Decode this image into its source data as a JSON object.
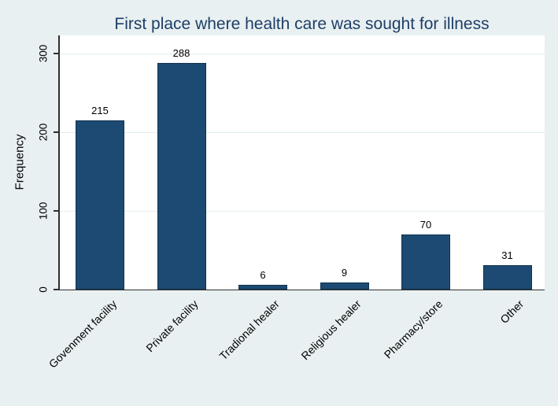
{
  "chart_data": {
    "type": "bar",
    "title": "First place where health care was sought for illness",
    "categories": [
      "Govenment facility",
      "Private facility",
      "Tradional healer",
      "Religious healer",
      "Pharmacy/store",
      "Other"
    ],
    "values": [
      215,
      288,
      6,
      9,
      70,
      31
    ],
    "bar_value_labels": [
      "215",
      "288",
      "6",
      "9",
      "70",
      "31"
    ],
    "xlabel": "",
    "ylabel": "Frequency",
    "yticks": [
      0,
      100,
      200,
      300
    ],
    "ytick_labels": [
      "0",
      "100",
      "200",
      "300"
    ],
    "ylim": [
      0,
      323
    ],
    "grid": true,
    "legend": false,
    "colors": {
      "figure_background": "#e9f0f2",
      "plot_background": "#ffffff",
      "bar_fill": "#1c4a72",
      "bar_border": "#12334f",
      "gridline": "#e2eef3",
      "axis_line": "#2f2f2f",
      "title_text": "#1e3e66",
      "tick_text": "#000000"
    }
  }
}
